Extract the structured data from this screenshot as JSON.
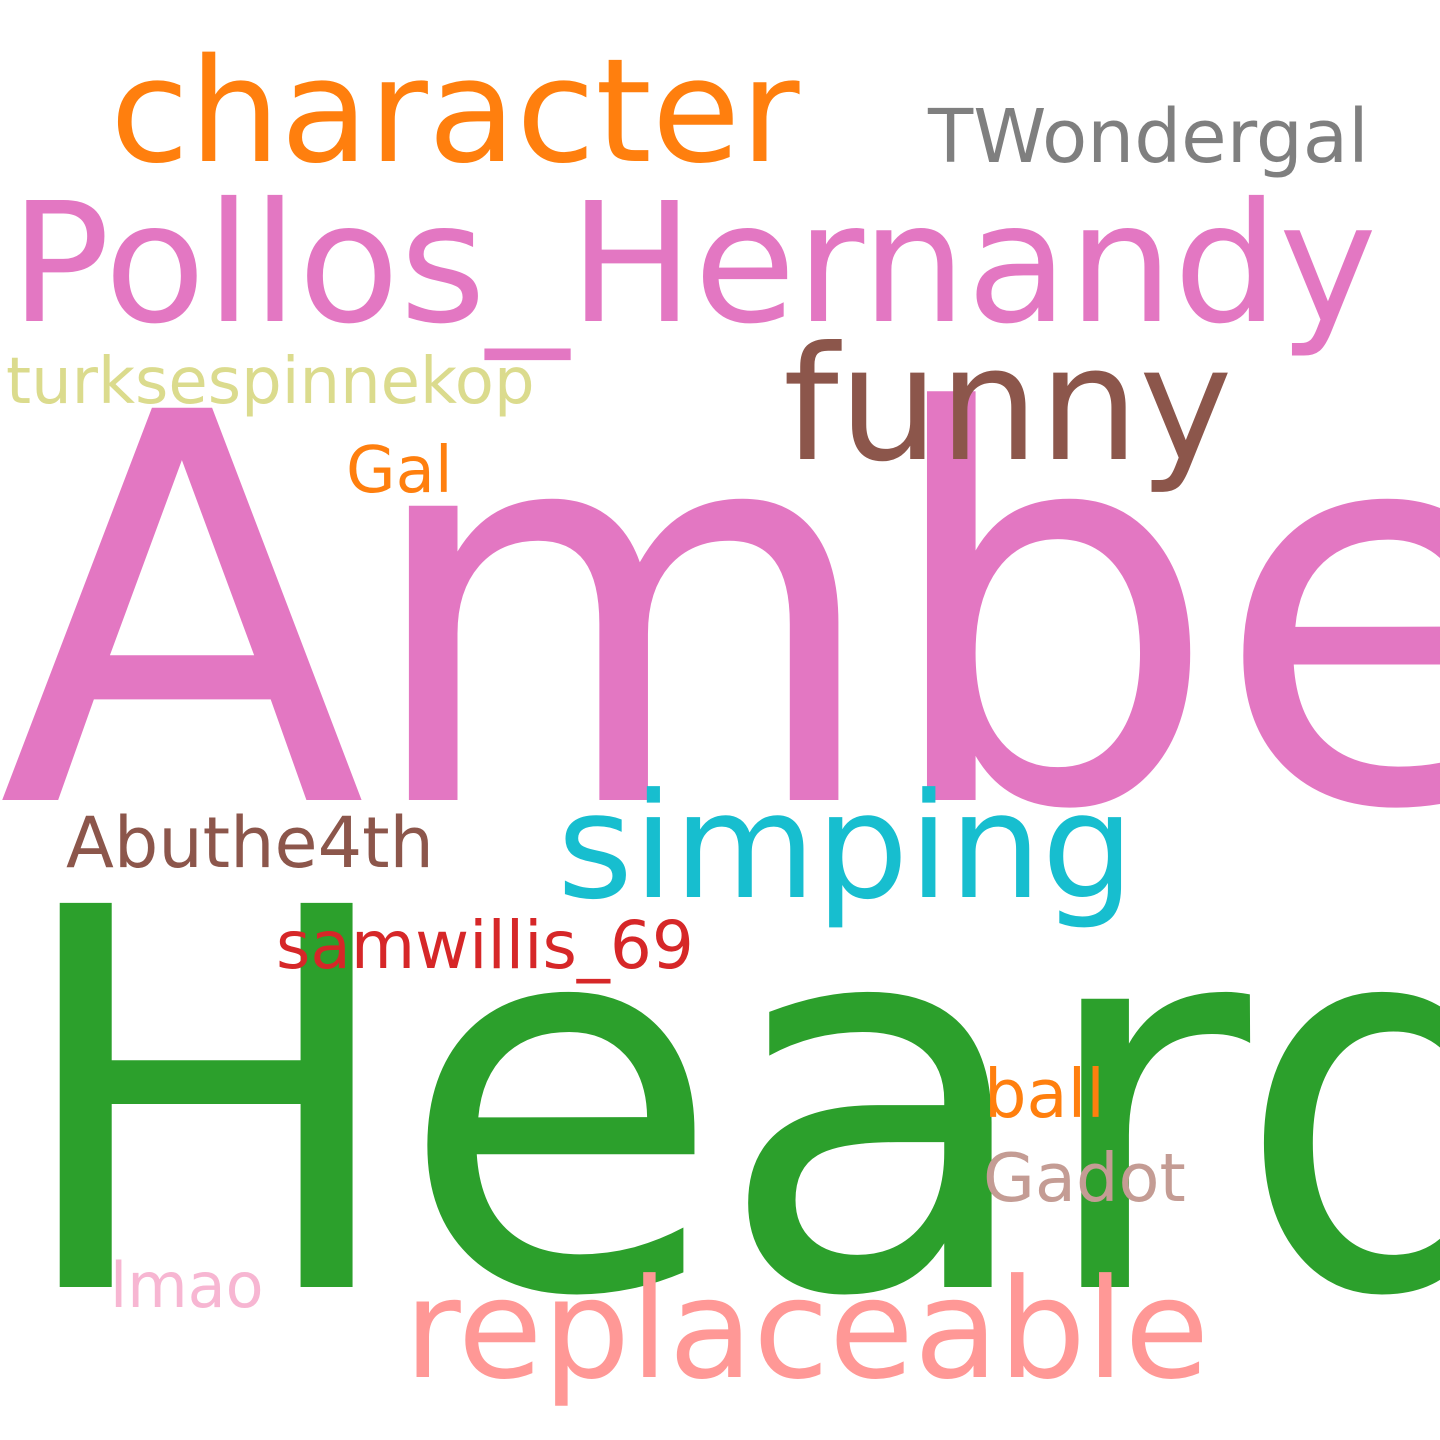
{
  "words": [
    {
      "text": "Amber",
      "color": "#e377c2"
    },
    {
      "text": "Heard",
      "color": "#2ca02c"
    },
    {
      "text": "Pollos_Hernandy",
      "color": "#e377c2"
    },
    {
      "text": "character",
      "color": "#ff7f0e"
    },
    {
      "text": "funny",
      "color": "#8c564b"
    },
    {
      "text": "simping",
      "color": "#17becf"
    },
    {
      "text": "replaceable",
      "color": "#ff9896"
    },
    {
      "text": "TWondergal",
      "color": "#7f7f7f"
    },
    {
      "text": "turksespinnekop",
      "color": "#dbdb8d"
    },
    {
      "text": "Gal",
      "color": "#ff7f0e"
    },
    {
      "text": "Abuthe4th",
      "color": "#8c564b"
    },
    {
      "text": "samwillis_69",
      "color": "#d62728"
    },
    {
      "text": "ball",
      "color": "#ff7f0e"
    },
    {
      "text": "Gadot",
      "color": "#c49c94"
    },
    {
      "text": "lmao",
      "color": "#f7b6d2"
    }
  ]
}
